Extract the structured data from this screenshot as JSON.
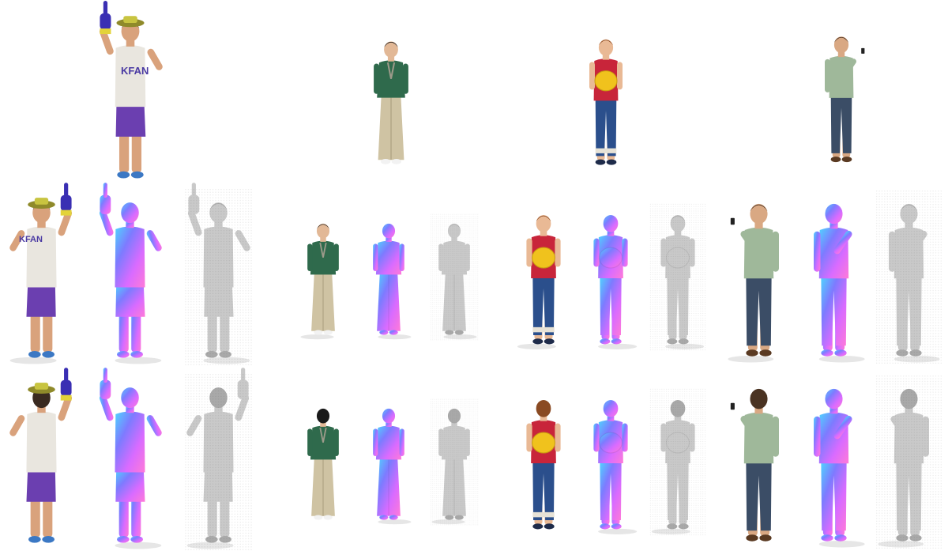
{
  "figure": {
    "rows": [
      "input",
      "novel-view-front",
      "novel-view-back"
    ],
    "styles": {
      "normal_grad": [
        "#4fd6ff",
        "#7d7bff",
        "#d96bff",
        "#ff7ad8"
      ],
      "mesh_grey": "#c9c9c9",
      "mesh_grey_dark": "#a9a9a9",
      "shadow": "#e6e6e6"
    },
    "subjects": [
      {
        "id": "fan",
        "shirt_text": "KFAN",
        "colors": {
          "skin": "#d9a27c",
          "shirt": "#e9e6df",
          "pants": "#6b3fb0",
          "shoe": "#3b78c4",
          "hat": "#8f8a2a",
          "hat_band": "#c8c440",
          "glove": "#3a2fb3",
          "glove_cuff": "#e3d33a",
          "hair": "#3a2a20"
        }
      },
      {
        "id": "kimono-child",
        "colors": {
          "skin": "#e2b896",
          "shirt": "#2f6a4c",
          "pants": "#cfc3a3",
          "shoe": "#f2f2f2",
          "hair": "#1a1a1a",
          "accent": "#9c9a8a"
        }
      },
      {
        "id": "straw-hat-child",
        "colors": {
          "skin": "#e9b995",
          "shirt": "#c8253a",
          "pants": "#2b4f8c",
          "shoe": "#1e2b4a",
          "hat": "#f0c21d",
          "hair": "#8a4a22",
          "cuff": "#e7e2d6"
        }
      },
      {
        "id": "phone-man",
        "colors": {
          "skin": "#d9a883",
          "shirt": "#9fb89a",
          "pants": "#3b4d66",
          "shoe": "#5a3a22",
          "hair": "#4a3322",
          "phone": "#222222"
        }
      }
    ]
  }
}
